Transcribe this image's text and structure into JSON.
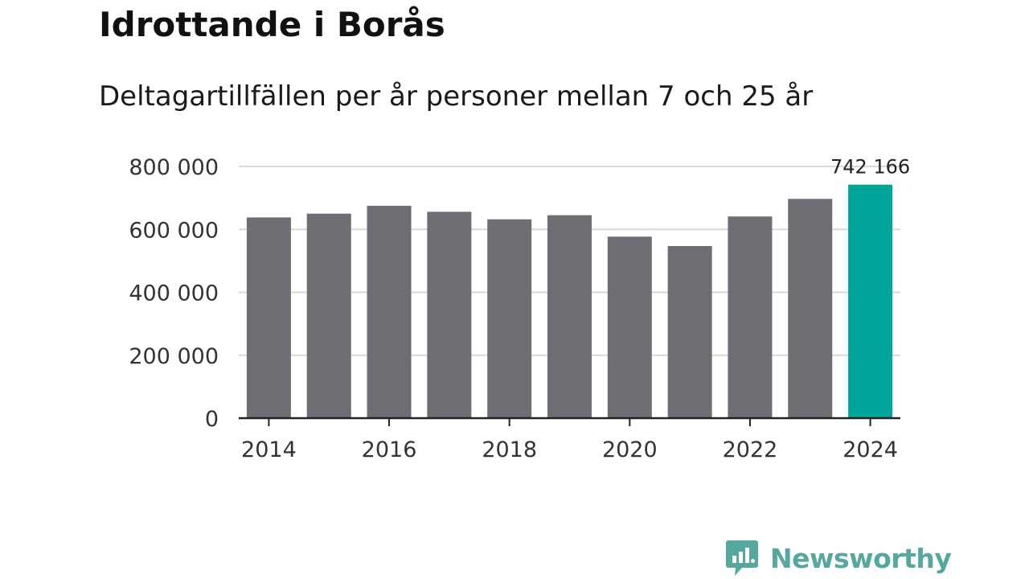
{
  "chart_data": {
    "type": "bar",
    "title": "Idrottande i Borås",
    "subtitle": "Deltagartillfällen per år personer mellan 7 och 25 år",
    "categories": [
      "2014",
      "2015",
      "2016",
      "2017",
      "2018",
      "2019",
      "2020",
      "2021",
      "2022",
      "2023",
      "2024"
    ],
    "values": [
      638000,
      650000,
      675000,
      656000,
      632000,
      645000,
      577000,
      547000,
      641000,
      697000,
      742166
    ],
    "ylim": [
      0,
      800000
    ],
    "yticks": [
      0,
      200000,
      400000,
      600000,
      800000
    ],
    "ytick_labels": [
      "0",
      "200 000",
      "400 000",
      "600 000",
      "800 000"
    ],
    "xtick_labels": [
      "2014",
      "2016",
      "2018",
      "2020",
      "2022",
      "2024"
    ],
    "annotation": {
      "category": "2024",
      "label": "742 166"
    },
    "xlabel": "",
    "ylabel": "",
    "grid": true,
    "legend": "none"
  },
  "brand": {
    "name": "Newsworthy"
  },
  "colors": {
    "bar": "#6e6d74",
    "highlight": "#00a59a",
    "grid": "#d9d9d9",
    "axis": "#222222",
    "brand": "#56a89f"
  }
}
